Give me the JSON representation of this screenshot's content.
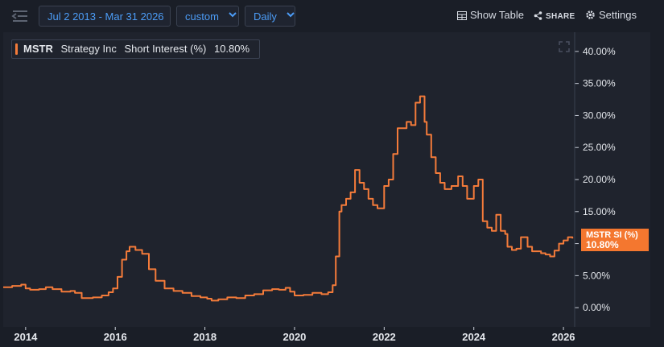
{
  "toolbar": {
    "date_range": "Jul 2 2013 - Mar 31 2026",
    "period": "custom",
    "interval": "Daily",
    "show_table": "Show Table",
    "share": "SHARE",
    "settings": "Settings"
  },
  "legend": {
    "ticker": "MSTR",
    "company": "Strategy Inc",
    "metric": "Short Interest (%)",
    "value": "10.80%"
  },
  "badge": {
    "label": "MSTR SI (%)",
    "value": "10.80%"
  },
  "colors": {
    "line": "#f47b3a",
    "accent": "#4c9cf6",
    "background": "#1a1e27"
  },
  "chart_data": {
    "type": "line",
    "series": [
      {
        "x": [
          2013.5,
          2013.7,
          2013.9,
          2014.0,
          2014.1,
          2014.3,
          2014.45,
          2014.6,
          2014.8,
          2015.0,
          2015.1,
          2015.25,
          2015.5,
          2015.7,
          2015.85,
          2015.95,
          2016.05,
          2016.15,
          2016.25,
          2016.32,
          2016.45,
          2016.6,
          2016.75,
          2016.9,
          2017.1,
          2017.3,
          2017.5,
          2017.7,
          2017.9,
          2018.05,
          2018.15,
          2018.3,
          2018.5,
          2018.7,
          2018.9,
          2019.1,
          2019.3,
          2019.5,
          2019.65,
          2019.8,
          2019.9,
          2020.0,
          2020.2,
          2020.4,
          2020.6,
          2020.75,
          2020.85,
          2020.92,
          2021.0,
          2021.05,
          2021.15,
          2021.25,
          2021.35,
          2021.45,
          2021.55,
          2021.65,
          2021.75,
          2021.85,
          2022.0,
          2022.1,
          2022.2,
          2022.3,
          2022.5,
          2022.6,
          2022.7,
          2022.8,
          2022.9,
          2022.95,
          2023.05,
          2023.15,
          2023.25,
          2023.35,
          2023.5,
          2023.65,
          2023.75,
          2023.85,
          2024.0,
          2024.1,
          2024.2,
          2024.3,
          2024.4,
          2024.5,
          2024.6,
          2024.7,
          2024.75,
          2024.85,
          2024.95,
          2025.05,
          2025.2,
          2025.3,
          2025.5,
          2025.6,
          2025.7,
          2025.8,
          2025.9,
          2026.0,
          2026.1,
          2026.2
        ],
        "y": [
          3.2,
          3.4,
          3.6,
          3.0,
          2.8,
          2.9,
          3.2,
          2.9,
          2.5,
          2.6,
          2.3,
          1.5,
          1.6,
          1.9,
          2.4,
          3.0,
          4.8,
          7.5,
          8.8,
          9.5,
          9.0,
          8.4,
          6.0,
          4.2,
          3.0,
          2.6,
          2.3,
          1.8,
          1.6,
          1.4,
          1.1,
          1.3,
          1.6,
          1.5,
          1.9,
          2.1,
          2.7,
          2.9,
          2.8,
          3.1,
          2.5,
          1.9,
          2.0,
          2.3,
          2.1,
          2.4,
          3.5,
          8.0,
          15.0,
          16.0,
          17.0,
          18.0,
          21.5,
          19.5,
          18.5,
          17.0,
          16.0,
          15.5,
          19.0,
          20.0,
          24.0,
          28.0,
          29.0,
          28.5,
          32.0,
          33.0,
          29.0,
          27.0,
          23.5,
          21.0,
          19.5,
          18.5,
          19.0,
          20.5,
          19.0,
          17.0,
          19.0,
          20.0,
          13.5,
          12.5,
          12.0,
          14.5,
          12.0,
          11.5,
          9.5,
          9.0,
          9.2,
          11.0,
          9.5,
          8.8,
          8.5,
          8.3,
          8.0,
          8.9,
          10.0,
          10.5,
          11.0,
          10.8
        ]
      }
    ],
    "x_ticks": [
      "2014",
      "2016",
      "2018",
      "2020",
      "2022",
      "2024",
      "2026"
    ],
    "y_ticks": [
      "0.00%",
      "5.00%",
      "10.00%",
      "15.00%",
      "20.00%",
      "25.00%",
      "30.00%",
      "35.00%",
      "40.00%"
    ],
    "xlim": [
      2013.5,
      2026.25
    ],
    "ylim": [
      -3,
      43
    ]
  }
}
